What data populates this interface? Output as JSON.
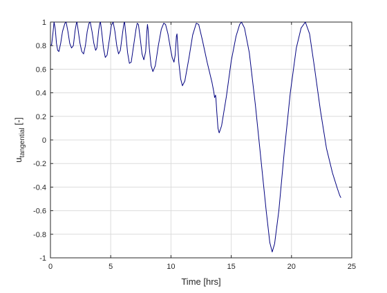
{
  "chart_data": {
    "type": "line",
    "title": "",
    "xlabel": "Time [hrs]",
    "ylabel_main": "u",
    "ylabel_sub": "tangential",
    "ylabel_unit": " [-]",
    "xlim": [
      0,
      25
    ],
    "ylim": [
      -1,
      1
    ],
    "xticks": [
      0,
      5,
      10,
      15,
      20,
      25
    ],
    "yticks": [
      -1,
      -0.8,
      -0.6,
      -0.4,
      -0.2,
      0,
      0.2,
      0.4,
      0.6,
      0.8,
      1
    ],
    "xtick_labels": [
      "0",
      "5",
      "10",
      "15",
      "20",
      "25"
    ],
    "ytick_labels": [
      "-1",
      "-0.8",
      "-0.6",
      "-0.4",
      "-0.2",
      "0",
      "0.2",
      "0.4",
      "0.6",
      "0.8",
      "1"
    ],
    "grid": true,
    "line_color": "#00007f",
    "series": [
      {
        "values": [
          [
            0.0,
            0.8
          ],
          [
            0.1,
            0.81
          ],
          [
            0.2,
            0.9
          ],
          [
            0.3,
            1.0
          ],
          [
            0.4,
            0.94
          ],
          [
            0.5,
            0.82
          ],
          [
            0.6,
            0.76
          ],
          [
            0.7,
            0.75
          ],
          [
            0.85,
            0.82
          ],
          [
            1.0,
            0.92
          ],
          [
            1.2,
            0.99
          ],
          [
            1.3,
            1.0
          ],
          [
            1.45,
            0.92
          ],
          [
            1.6,
            0.82
          ],
          [
            1.75,
            0.78
          ],
          [
            1.9,
            0.8
          ],
          [
            2.05,
            0.93
          ],
          [
            2.15,
            0.99
          ],
          [
            2.2,
            1.0
          ],
          [
            2.3,
            0.93
          ],
          [
            2.45,
            0.82
          ],
          [
            2.6,
            0.75
          ],
          [
            2.75,
            0.73
          ],
          [
            2.9,
            0.8
          ],
          [
            3.05,
            0.92
          ],
          [
            3.2,
            0.99
          ],
          [
            3.3,
            1.0
          ],
          [
            3.45,
            0.92
          ],
          [
            3.6,
            0.82
          ],
          [
            3.75,
            0.76
          ],
          [
            3.85,
            0.78
          ],
          [
            4.0,
            0.93
          ],
          [
            4.1,
            0.99
          ],
          [
            4.15,
            1.0
          ],
          [
            4.25,
            0.92
          ],
          [
            4.4,
            0.78
          ],
          [
            4.55,
            0.7
          ],
          [
            4.7,
            0.72
          ],
          [
            4.9,
            0.86
          ],
          [
            5.05,
            0.97
          ],
          [
            5.2,
            1.0
          ],
          [
            5.35,
            0.92
          ],
          [
            5.5,
            0.8
          ],
          [
            5.65,
            0.73
          ],
          [
            5.8,
            0.76
          ],
          [
            6.0,
            0.92
          ],
          [
            6.1,
            0.99
          ],
          [
            6.15,
            1.0
          ],
          [
            6.25,
            0.9
          ],
          [
            6.4,
            0.74
          ],
          [
            6.55,
            0.65
          ],
          [
            6.7,
            0.66
          ],
          [
            6.9,
            0.8
          ],
          [
            7.1,
            0.94
          ],
          [
            7.2,
            0.99
          ],
          [
            7.3,
            0.98
          ],
          [
            7.45,
            0.86
          ],
          [
            7.6,
            0.73
          ],
          [
            7.75,
            0.68
          ],
          [
            7.9,
            0.75
          ],
          [
            8.0,
            0.92
          ],
          [
            8.05,
            0.98
          ],
          [
            8.1,
            0.94
          ],
          [
            8.2,
            0.78
          ],
          [
            8.35,
            0.63
          ],
          [
            8.5,
            0.58
          ],
          [
            8.7,
            0.63
          ],
          [
            8.95,
            0.8
          ],
          [
            9.2,
            0.94
          ],
          [
            9.4,
            0.99
          ],
          [
            9.55,
            0.98
          ],
          [
            9.75,
            0.9
          ],
          [
            9.95,
            0.78
          ],
          [
            10.1,
            0.7
          ],
          [
            10.25,
            0.66
          ],
          [
            10.35,
            0.72
          ],
          [
            10.45,
            0.88
          ],
          [
            10.5,
            0.9
          ],
          [
            10.55,
            0.82
          ],
          [
            10.65,
            0.66
          ],
          [
            10.8,
            0.52
          ],
          [
            10.95,
            0.46
          ],
          [
            11.15,
            0.5
          ],
          [
            11.5,
            0.7
          ],
          [
            11.8,
            0.89
          ],
          [
            12.1,
            0.99
          ],
          [
            12.3,
            0.98
          ],
          [
            12.6,
            0.85
          ],
          [
            13.0,
            0.66
          ],
          [
            13.4,
            0.49
          ],
          [
            13.55,
            0.41
          ],
          [
            13.62,
            0.36
          ],
          [
            13.7,
            0.38
          ],
          [
            13.73,
            0.35
          ],
          [
            13.8,
            0.24
          ],
          [
            13.9,
            0.1
          ],
          [
            14.0,
            0.06
          ],
          [
            14.2,
            0.12
          ],
          [
            14.6,
            0.37
          ],
          [
            15.0,
            0.67
          ],
          [
            15.4,
            0.88
          ],
          [
            15.7,
            0.98
          ],
          [
            15.85,
            1.0
          ],
          [
            16.1,
            0.95
          ],
          [
            16.5,
            0.74
          ],
          [
            17.0,
            0.3
          ],
          [
            17.5,
            -0.2
          ],
          [
            17.9,
            -0.6
          ],
          [
            18.2,
            -0.87
          ],
          [
            18.4,
            -0.95
          ],
          [
            18.6,
            -0.88
          ],
          [
            18.95,
            -0.6
          ],
          [
            19.4,
            -0.1
          ],
          [
            19.9,
            0.4
          ],
          [
            20.4,
            0.78
          ],
          [
            20.8,
            0.95
          ],
          [
            21.15,
            1.0
          ],
          [
            21.5,
            0.9
          ],
          [
            21.9,
            0.62
          ],
          [
            22.4,
            0.25
          ],
          [
            22.9,
            -0.07
          ],
          [
            23.4,
            -0.28
          ],
          [
            23.8,
            -0.41
          ],
          [
            24.0,
            -0.47
          ],
          [
            24.1,
            -0.49
          ]
        ]
      }
    ]
  }
}
